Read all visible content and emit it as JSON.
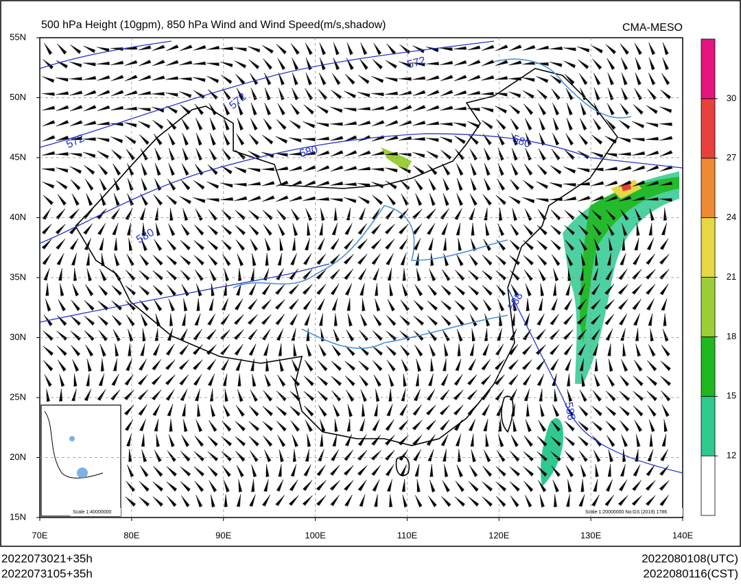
{
  "header": {
    "title": "500 hPa Height (10gpm), 850 hPa Wind and Wind Speed(m/s,shadow)",
    "source": "CMA-MESO"
  },
  "map": {
    "lat_labels": [
      "55N",
      "50N",
      "45N",
      "40N",
      "35N",
      "30N",
      "25N",
      "20N",
      "15N"
    ],
    "lon_labels": [
      "70E",
      "80E",
      "90E",
      "100E",
      "110E",
      "120E",
      "130E",
      "140E"
    ],
    "contour_labels": [
      572,
      572,
      572,
      580,
      580,
      580,
      588,
      588
    ],
    "contour_color": "#2233cc",
    "inset_scale": "Scale 1:40000000",
    "map_scale": "Scale 1:20000000 No:GS (2019) 1786"
  },
  "colorbar": {
    "ticks": [
      12,
      15,
      18,
      21,
      24,
      27,
      30
    ],
    "colors": [
      "#ffffff",
      "#2fc98f",
      "#1fb81f",
      "#9bcf3a",
      "#e6d845",
      "#ee8a33",
      "#e8403d",
      "#e5157f"
    ]
  },
  "footer": {
    "init_utc": "2022073021+35h",
    "init_cst": "2022073105+35h",
    "valid_utc": "2022080108(UTC)",
    "valid_cst": "2022080116(CST)"
  }
}
